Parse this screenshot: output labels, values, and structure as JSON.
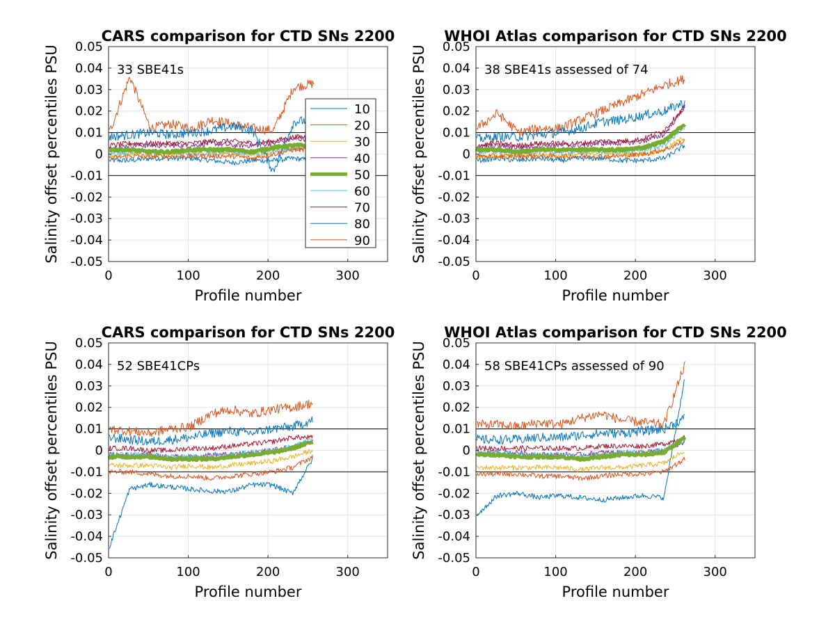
{
  "legend": {
    "entries": [
      "10",
      "20",
      "30",
      "40",
      "50",
      "60",
      "70",
      "80",
      "90"
    ],
    "colors": [
      "#0072BD",
      "#D95319",
      "#EDB120",
      "#7E2F8E",
      "#77AC30",
      "#4DBEEE",
      "#A2142F",
      "#0072BD",
      "#D95319"
    ]
  },
  "chart_data": [
    {
      "type": "line",
      "title": "CARS comparison for CTD SNs 2200",
      "annotation": "33 SBE41s",
      "xlabel": "Profile number",
      "ylabel": "Salinity offset percentiles PSU",
      "xlim": [
        0,
        350
      ],
      "ylim": [
        -0.05,
        0.05
      ],
      "x_ticks": [
        "0",
        "100",
        "200",
        "300"
      ],
      "y_ticks": [
        "-0.05",
        "-0.04",
        "-0.03",
        "-0.02",
        "-0.01",
        "0",
        "0.01",
        "0.02",
        "0.03",
        "0.04",
        "0.05"
      ],
      "grid": true,
      "legend_position": "inside-right",
      "reference_lines": [
        0.01,
        -0.01
      ],
      "x_end": 258,
      "series": [
        {
          "name": "10",
          "values": [
            -0.003,
            -0.003,
            -0.002,
            -0.002,
            -0.002,
            -0.003,
            -0.004,
            -0.003,
            -0.003,
            -0.002,
            -0.003
          ]
        },
        {
          "name": "20",
          "values": [
            0.01,
            0.036,
            0.012,
            0.014,
            0.012,
            0.016,
            0.014,
            0.012,
            0.011,
            0.031,
            0.033
          ]
        },
        {
          "name": "30",
          "values": [
            -0.001,
            0.0,
            -0.001,
            0.0,
            0.0,
            0.0,
            0.0,
            -0.001,
            0.001,
            0.003,
            0.003
          ]
        },
        {
          "name": "40",
          "values": [
            0.003,
            0.004,
            0.004,
            0.004,
            0.004,
            0.005,
            0.004,
            0.004,
            0.005,
            0.007,
            0.007
          ]
        },
        {
          "name": "50",
          "values": [
            0.002,
            0.002,
            0.001,
            0.001,
            0.002,
            0.002,
            0.002,
            0.001,
            0.003,
            0.004,
            0.004
          ]
        },
        {
          "name": "60",
          "values": [
            0.0,
            0.001,
            0.001,
            0.001,
            0.0,
            0.001,
            0.001,
            0.0,
            0.002,
            0.003,
            0.003
          ]
        },
        {
          "name": "70",
          "values": [
            0.004,
            0.005,
            0.005,
            0.005,
            0.005,
            0.006,
            0.006,
            0.005,
            0.006,
            0.008,
            0.008
          ]
        },
        {
          "name": "80",
          "values": [
            0.008,
            0.009,
            0.01,
            0.009,
            0.01,
            0.011,
            0.013,
            0.011,
            -0.008,
            0.015,
            0.016
          ]
        },
        {
          "name": "90",
          "values": [
            -0.002,
            -0.001,
            -0.001,
            -0.001,
            -0.001,
            -0.001,
            -0.001,
            -0.002,
            0.0,
            0.002,
            0.002
          ]
        }
      ]
    },
    {
      "type": "line",
      "title": "WHOI Atlas comparison for CTD SNs 2200",
      "annotation": "38 SBE41s assessed of 74",
      "xlabel": "Profile number",
      "ylabel": "Salinity offset percentiles PSU",
      "xlim": [
        0,
        350
      ],
      "ylim": [
        -0.05,
        0.05
      ],
      "x_ticks": [
        "0",
        "100",
        "200",
        "300"
      ],
      "y_ticks": [
        "-0.05",
        "-0.04",
        "-0.03",
        "-0.02",
        "-0.01",
        "0",
        "0.01",
        "0.02",
        "0.03",
        "0.04",
        "0.05"
      ],
      "grid": true,
      "reference_lines": [
        0.01,
        -0.01
      ],
      "x_end": 262,
      "series": [
        {
          "name": "10",
          "values": [
            -0.003,
            -0.002,
            -0.003,
            -0.002,
            -0.003,
            -0.002,
            -0.002,
            -0.003,
            -0.003,
            -0.002,
            0.004
          ]
        },
        {
          "name": "20",
          "values": [
            0.012,
            0.019,
            0.01,
            0.012,
            0.012,
            0.016,
            0.02,
            0.024,
            0.028,
            0.032,
            0.035
          ]
        },
        {
          "name": "30",
          "values": [
            -0.001,
            -0.001,
            -0.001,
            0.0,
            -0.001,
            0.0,
            0.0,
            0.0,
            0.0,
            0.002,
            0.008
          ]
        },
        {
          "name": "40",
          "values": [
            0.003,
            0.004,
            0.003,
            0.004,
            0.004,
            0.004,
            0.005,
            0.005,
            0.006,
            0.009,
            0.022
          ]
        },
        {
          "name": "50",
          "values": [
            0.002,
            0.002,
            0.001,
            0.002,
            0.002,
            0.002,
            0.002,
            0.002,
            0.003,
            0.006,
            0.014
          ]
        },
        {
          "name": "60",
          "values": [
            0.001,
            0.001,
            0.001,
            0.001,
            0.001,
            0.001,
            0.001,
            0.001,
            0.002,
            0.004,
            0.012
          ]
        },
        {
          "name": "70",
          "values": [
            0.004,
            0.005,
            0.004,
            0.005,
            0.005,
            0.005,
            0.006,
            0.006,
            0.007,
            0.011,
            0.022
          ]
        },
        {
          "name": "80",
          "values": [
            0.007,
            0.008,
            0.008,
            0.009,
            0.01,
            0.012,
            0.015,
            0.016,
            0.018,
            0.02,
            0.024
          ]
        },
        {
          "name": "90",
          "values": [
            -0.001,
            -0.001,
            -0.001,
            -0.001,
            -0.001,
            -0.001,
            -0.001,
            -0.001,
            0.0,
            0.002,
            0.006
          ]
        }
      ]
    },
    {
      "type": "line",
      "title": "CARS comparison for CTD SNs 2200",
      "annotation": "52 SBE41CPs",
      "xlabel": "Profile number",
      "ylabel": "Salinity offset percentiles PSU",
      "xlim": [
        0,
        350
      ],
      "ylim": [
        -0.05,
        0.05
      ],
      "x_ticks": [
        "0",
        "100",
        "200",
        "300"
      ],
      "y_ticks": [
        "-0.05",
        "-0.04",
        "-0.03",
        "-0.02",
        "-0.01",
        "0",
        "0.01",
        "0.02",
        "0.03",
        "0.04",
        "0.05"
      ],
      "grid": true,
      "reference_lines": [
        0.01,
        -0.01
      ],
      "x_end": 256,
      "series": [
        {
          "name": "10",
          "values": [
            -0.045,
            -0.018,
            -0.016,
            -0.017,
            -0.018,
            -0.019,
            -0.019,
            -0.016,
            -0.016,
            -0.02,
            -0.004
          ]
        },
        {
          "name": "20",
          "values": [
            0.01,
            0.009,
            0.008,
            0.01,
            0.011,
            0.017,
            0.019,
            0.017,
            0.019,
            0.02,
            0.022
          ]
        },
        {
          "name": "30",
          "values": [
            -0.007,
            -0.007,
            -0.007,
            -0.008,
            -0.007,
            -0.008,
            -0.007,
            -0.006,
            -0.005,
            -0.003,
            0.0
          ]
        },
        {
          "name": "40",
          "values": [
            -0.002,
            -0.002,
            -0.002,
            -0.003,
            -0.003,
            -0.002,
            -0.002,
            -0.001,
            0.0,
            0.002,
            0.004
          ]
        },
        {
          "name": "50",
          "values": [
            -0.003,
            -0.003,
            -0.003,
            -0.004,
            -0.004,
            -0.004,
            -0.003,
            -0.002,
            -0.001,
            0.001,
            0.004
          ]
        },
        {
          "name": "60",
          "values": [
            -0.002,
            -0.002,
            -0.002,
            -0.003,
            -0.003,
            -0.003,
            -0.002,
            -0.001,
            0.0,
            0.002,
            0.005
          ]
        },
        {
          "name": "70",
          "values": [
            0.001,
            0.001,
            0.0,
            0.0,
            0.001,
            0.001,
            0.002,
            0.003,
            0.004,
            0.006,
            0.006
          ]
        },
        {
          "name": "80",
          "values": [
            0.006,
            0.005,
            0.004,
            0.005,
            0.006,
            0.008,
            0.009,
            0.008,
            0.01,
            0.011,
            0.014
          ]
        },
        {
          "name": "90",
          "values": [
            -0.01,
            -0.01,
            -0.011,
            -0.012,
            -0.012,
            -0.013,
            -0.012,
            -0.011,
            -0.01,
            -0.008,
            -0.003
          ]
        }
      ]
    },
    {
      "type": "line",
      "title": "WHOI Atlas comparison for CTD SNs 2200",
      "annotation": "58 SBE41CPs assessed of 90",
      "xlabel": "Profile number",
      "ylabel": "Salinity offset percentiles PSU",
      "xlim": [
        0,
        350
      ],
      "ylim": [
        -0.05,
        0.05
      ],
      "x_ticks": [
        "0",
        "100",
        "200",
        "300"
      ],
      "y_ticks": [
        "-0.05",
        "-0.04",
        "-0.03",
        "-0.02",
        "-0.01",
        "0",
        "0.01",
        "0.02",
        "0.03",
        "0.04",
        "0.05"
      ],
      "grid": true,
      "reference_lines": [
        0.01,
        -0.01
      ],
      "x_end": 262,
      "series": [
        {
          "name": "10",
          "values": [
            -0.03,
            -0.021,
            -0.02,
            -0.022,
            -0.021,
            -0.022,
            -0.023,
            -0.022,
            -0.021,
            -0.022,
            0.034
          ]
        },
        {
          "name": "20",
          "values": [
            0.012,
            0.012,
            0.011,
            0.013,
            0.012,
            0.015,
            0.017,
            0.014,
            0.013,
            0.012,
            0.04
          ]
        },
        {
          "name": "30",
          "values": [
            -0.008,
            -0.008,
            -0.008,
            -0.008,
            -0.008,
            -0.009,
            -0.008,
            -0.008,
            -0.007,
            -0.006,
            0.0
          ]
        },
        {
          "name": "40",
          "values": [
            -0.001,
            -0.001,
            -0.001,
            -0.002,
            -0.002,
            -0.002,
            -0.001,
            -0.001,
            -0.001,
            0.0,
            0.004
          ]
        },
        {
          "name": "50",
          "values": [
            -0.002,
            -0.002,
            -0.003,
            -0.003,
            -0.003,
            -0.004,
            -0.003,
            -0.002,
            -0.002,
            -0.001,
            0.006
          ]
        },
        {
          "name": "60",
          "values": [
            -0.001,
            -0.001,
            -0.002,
            -0.002,
            -0.002,
            -0.003,
            -0.002,
            -0.001,
            -0.001,
            0.0,
            0.005
          ]
        },
        {
          "name": "70",
          "values": [
            0.001,
            0.001,
            0.001,
            0.001,
            0.001,
            0.001,
            0.002,
            0.002,
            0.002,
            0.003,
            0.006
          ]
        },
        {
          "name": "80",
          "values": [
            0.005,
            0.005,
            0.005,
            0.006,
            0.006,
            0.007,
            0.008,
            0.008,
            0.009,
            0.01,
            0.015
          ]
        },
        {
          "name": "90",
          "values": [
            -0.011,
            -0.011,
            -0.011,
            -0.012,
            -0.012,
            -0.013,
            -0.012,
            -0.011,
            -0.011,
            -0.01,
            -0.004
          ]
        }
      ]
    }
  ]
}
